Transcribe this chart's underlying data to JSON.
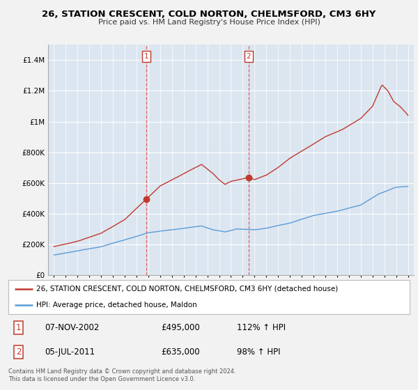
{
  "title": "26, STATION CRESCENT, COLD NORTON, CHELMSFORD, CM3 6HY",
  "subtitle": "Price paid vs. HM Land Registry's House Price Index (HPI)",
  "legend_line1": "26, STATION CRESCENT, COLD NORTON, CHELMSFORD, CM3 6HY (detached house)",
  "legend_line2": "HPI: Average price, detached house, Maldon",
  "footnote": "Contains HM Land Registry data © Crown copyright and database right 2024.\nThis data is licensed under the Open Government Licence v3.0.",
  "sale1_label": "1",
  "sale1_date": "07-NOV-2002",
  "sale1_price": "£495,000",
  "sale1_hpi": "112% ↑ HPI",
  "sale2_label": "2",
  "sale2_date": "05-JUL-2011",
  "sale2_price": "£635,000",
  "sale2_hpi": "98% ↑ HPI",
  "sale1_x": 2002.85,
  "sale1_y": 495000,
  "sale2_x": 2011.5,
  "sale2_y": 635000,
  "red_color": "#c0392b",
  "blue_color": "#5b9bd5",
  "vline_color": "#e06060",
  "background_color": "#dce6f1",
  "fig_bg_color": "#f2f2f2",
  "ylim": [
    0,
    1500000
  ],
  "xlim_start": 1994.5,
  "xlim_end": 2025.5
}
